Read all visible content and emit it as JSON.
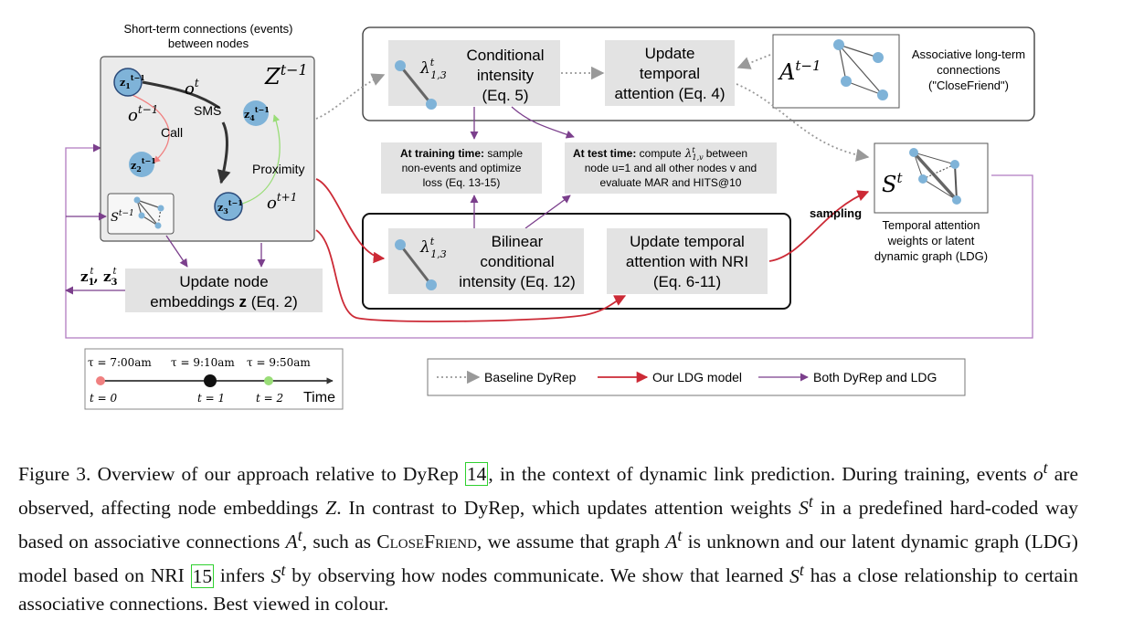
{
  "figure": {
    "short_term_title_1": "Short-term connections (events)",
    "short_term_title_2": "between nodes",
    "zt_label": "Z",
    "zt_sup": "t−1",
    "ot": "o",
    "ot_sup": "t",
    "ot_prev": "o",
    "ot_prev_sup": "t−1",
    "ot_next": "o",
    "ot_next_sup": "t+1",
    "sms": "SMS",
    "call": "Call",
    "proximity": "Proximity",
    "node1": "z1",
    "node2": "z2",
    "node3": "z3",
    "node4": "z4",
    "node_sup": "t−1",
    "s_prev": "S",
    "s_prev_sup": "t−1",
    "cond_intensity_1": "Conditional",
    "cond_intensity_2": "intensity",
    "cond_intensity_3": "(Eq. 5)",
    "lambda": "λ",
    "lambda_sub": "1,3",
    "lambda_sup": "t",
    "update_temporal_1": "Update",
    "update_temporal_2": "temporal",
    "update_temporal_3": "attention (Eq. 4)",
    "a_label": "A",
    "a_sup": "t−1",
    "assoc_1": "Associative long-term",
    "assoc_2": "connections",
    "assoc_3": "(\"CloseFriend\")",
    "training_bold": "At training time:",
    "training_1": " sample",
    "training_2": "non-events and optimize",
    "training_3": "loss (Eq. 13-15)",
    "test_bold": "At test time:",
    "test_1": " compute",
    "test_1b": "between",
    "test_lambda_sub": "1,v",
    "test_2": "node u=1 and all other nodes v and",
    "test_3": "evaluate MAR and HITS@10",
    "bilinear_1": "Bilinear",
    "bilinear_2": "conditional",
    "bilinear_3": "intensity (Eq. 12)",
    "nri_1": "Update temporal",
    "nri_2": "attention with NRI",
    "nri_3": "(Eq. 6-11)",
    "sampling": "sampling",
    "st_label": "S",
    "st_sup": "t",
    "tattn_1": "Temporal attention",
    "tattn_2": "weights or latent",
    "tattn_3": "dynamic graph (LDG)",
    "update_node_1": "Update node",
    "update_node_2": "embeddings",
    "update_node_z": "z",
    "update_node_3": "(Eq. 2)",
    "z13_label": "z1t, z3t",
    "timeline": {
      "tau1": "τ = 7:00am",
      "tau2": "τ = 9:10am",
      "tau3": "τ = 9:50am",
      "t0": "t = 0",
      "t1": "t = 1",
      "t2": "t = 2",
      "time": "Time"
    },
    "legend": {
      "baseline": "Baseline DyRep",
      "ours": "Our LDG model",
      "both": "Both DyRep and LDG"
    },
    "colors": {
      "purple": "#7b3f8c",
      "red": "#cc2a36",
      "gray_dotted": "#999999",
      "node_blue": "#7fb3d8",
      "box_gray": "#e3e3e3",
      "salmon": "#f08080",
      "green": "#99dd77"
    }
  },
  "caption": {
    "p1": "Figure 3. Overview of our approach relative to DyRep ",
    "ref14": "14",
    "p2": ", in the context of dynamic link prediction. During training, events ",
    "p3": " are observed, affecting node embeddings ",
    "p4": ". In contrast to DyRep, which updates attention weights ",
    "p5": " in a predefined hard-coded way based on associative connections ",
    "p6": ", such as ",
    "closefriend": "CloseFriend",
    "p7": ", we assume that graph ",
    "p8": " is unknown and our latent dynamic graph (LDG) model based on NRI ",
    "ref15": "15",
    "p9": " infers ",
    "p10": " by observing how nodes communicate. We show that learned ",
    "p11": " has a close relationship to certain associative connections. Best viewed in colour."
  }
}
